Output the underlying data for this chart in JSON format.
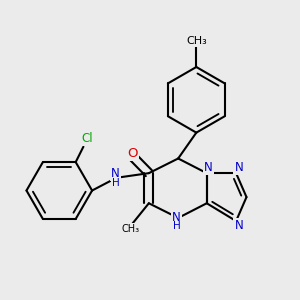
{
  "bg_color": "#ebebeb",
  "bond_color": "#000000",
  "bond_width": 1.5,
  "atom_colors": {
    "N": "#0000cc",
    "O": "#dd0000",
    "Cl": "#00aa00",
    "C": "#000000",
    "H": "#000000"
  },
  "font_size": 8.5
}
